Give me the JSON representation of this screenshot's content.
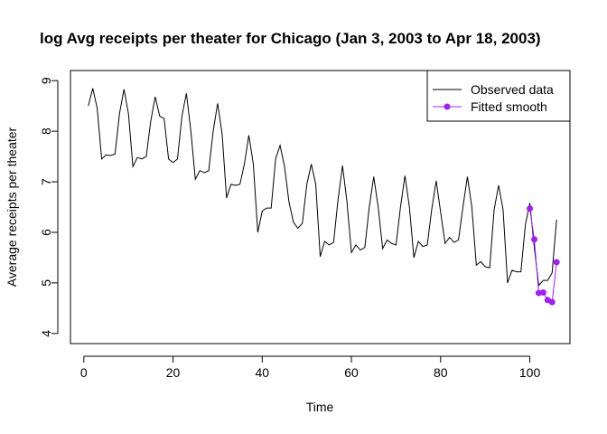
{
  "chart_data": {
    "type": "line",
    "title": "log Avg receipts per theater for Chicago (Jan 3, 2003 to Apr 18, 2003)",
    "xlabel": "Time",
    "ylabel": "Average receipts per theater",
    "xlim": [
      -3,
      109
    ],
    "ylim": [
      3.8,
      9.2
    ],
    "x_ticks": [
      0,
      20,
      40,
      60,
      80,
      100
    ],
    "y_ticks": [
      4,
      5,
      6,
      7,
      8,
      9
    ],
    "grid": false,
    "legend_position": "top-right",
    "series": [
      {
        "name": "Observed data",
        "color": "#000000",
        "style": "line",
        "x": [
          1,
          2,
          3,
          4,
          5,
          6,
          7,
          8,
          9,
          10,
          11,
          12,
          13,
          14,
          15,
          16,
          17,
          18,
          19,
          20,
          21,
          22,
          23,
          24,
          25,
          26,
          27,
          28,
          29,
          30,
          31,
          32,
          33,
          34,
          35,
          36,
          37,
          38,
          39,
          40,
          41,
          42,
          43,
          44,
          45,
          46,
          47,
          48,
          49,
          50,
          51,
          52,
          53,
          54,
          55,
          56,
          57,
          58,
          59,
          60,
          61,
          62,
          63,
          64,
          65,
          66,
          67,
          68,
          69,
          70,
          71,
          72,
          73,
          74,
          75,
          76,
          77,
          78,
          79,
          80,
          81,
          82,
          83,
          84,
          85,
          86,
          87,
          88,
          89,
          90,
          91,
          92,
          93,
          94,
          95,
          96,
          97,
          98,
          99,
          100,
          101,
          102,
          103,
          104,
          105,
          106
        ],
        "y": [
          8.5,
          8.85,
          8.45,
          7.45,
          7.53,
          7.52,
          7.55,
          8.35,
          8.83,
          8.35,
          7.3,
          7.48,
          7.45,
          7.5,
          8.2,
          8.68,
          8.3,
          8.25,
          7.45,
          7.38,
          7.45,
          8.3,
          8.75,
          8.0,
          7.05,
          7.22,
          7.18,
          7.22,
          8.0,
          8.55,
          7.95,
          6.68,
          6.95,
          6.93,
          6.95,
          7.35,
          7.92,
          7.35,
          6.0,
          6.42,
          6.48,
          6.48,
          7.45,
          7.72,
          7.3,
          6.6,
          6.2,
          6.08,
          6.18,
          6.95,
          7.35,
          6.95,
          5.52,
          5.82,
          5.75,
          5.8,
          6.65,
          7.32,
          6.6,
          5.6,
          5.75,
          5.65,
          5.7,
          6.5,
          7.1,
          6.5,
          5.68,
          5.85,
          5.78,
          5.75,
          6.5,
          7.12,
          6.5,
          5.5,
          5.82,
          5.72,
          5.75,
          6.45,
          7.02,
          6.4,
          5.78,
          5.9,
          5.8,
          5.85,
          6.5,
          7.1,
          6.5,
          5.35,
          5.42,
          5.32,
          5.3,
          6.45,
          6.93,
          6.45,
          5.0,
          5.25,
          5.22,
          5.22,
          6.15,
          6.58,
          5.7,
          4.95,
          5.05,
          5.05,
          5.2,
          6.25
        ]
      },
      {
        "name": "Fitted smooth",
        "color": "#a020f0",
        "style": "line+points",
        "x": [
          100,
          101,
          102,
          103,
          104,
          105,
          106
        ],
        "y": [
          6.47,
          5.86,
          4.8,
          4.81,
          4.66,
          4.62,
          5.41
        ]
      }
    ]
  }
}
